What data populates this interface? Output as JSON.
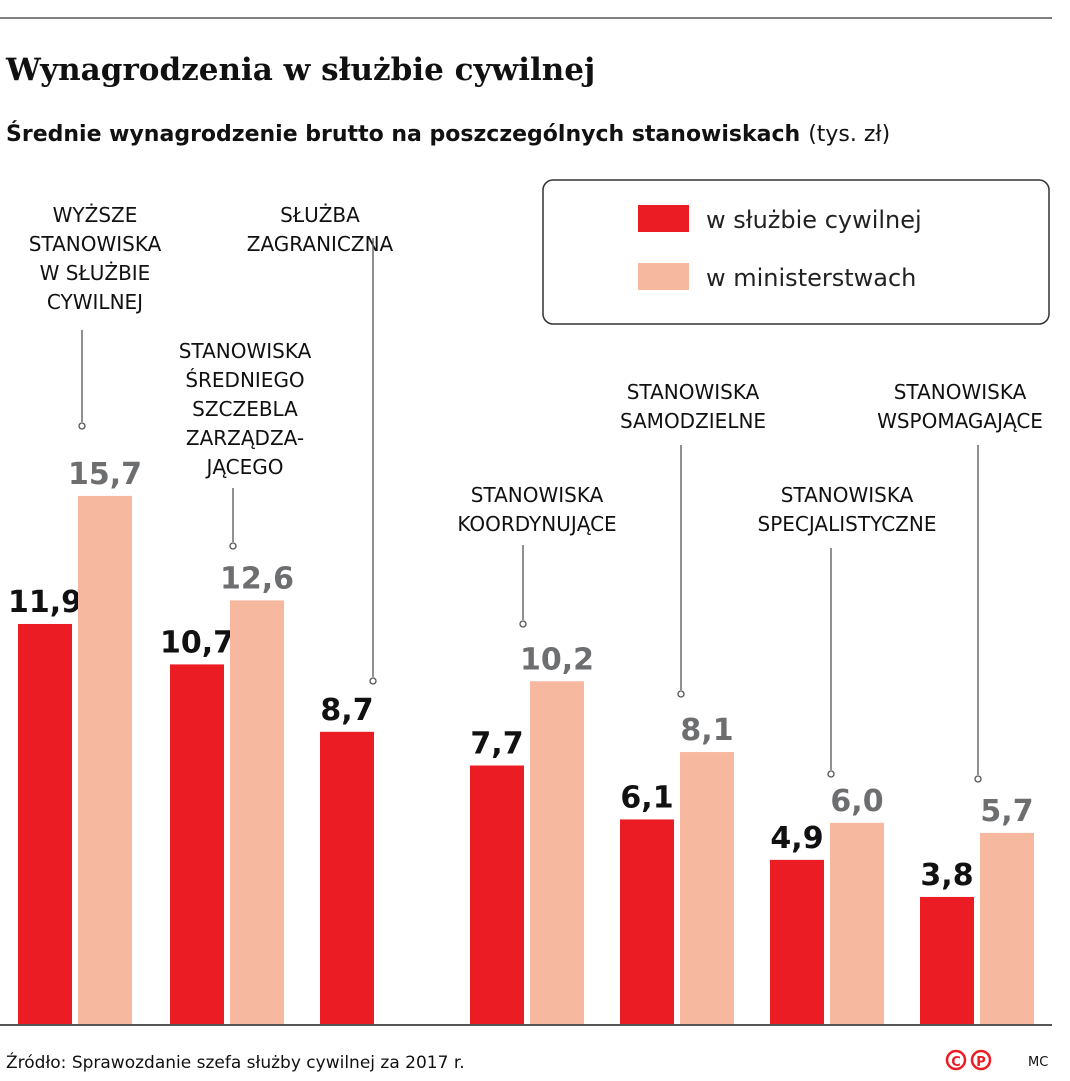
{
  "header": {
    "title": "Wynagrodzenia w służbie cywilnej",
    "subtitle": "Średnie wynagrodzenie brutto na poszczególnych stanowiskach",
    "unit": "(tys. zł)"
  },
  "footer": {
    "source": "Źródło: Sprawozdanie szefa służby cywilnej za 2017 r.",
    "copyright_logo": "©℗",
    "author": "MC"
  },
  "colors": {
    "red": "#ec1c24",
    "pink": "#f7b8a0",
    "red_label": "#111111",
    "pink_label": "#6d6e70"
  },
  "chart_data": {
    "type": "bar",
    "title": "Średnie wynagrodzenie brutto na poszczególnych stanowiskach",
    "unit": "tys. zł",
    "categories": [
      [
        "WYŻSZE",
        "STANOWISKA",
        "W SŁUŻBIE",
        "CYWILNEJ"
      ],
      [
        "STANOWISKA",
        "ŚREDNIEGO",
        "SZCZEBLA",
        "ZARZĄDZA-",
        "JĄCEGO"
      ],
      [
        "SŁUŻBA",
        "ZAGRANICZNA"
      ],
      [
        "STANOWISKA",
        "KOORDYNUJĄCE"
      ],
      [
        "STANOWISKA",
        "SAMODZIELNE"
      ],
      [
        "STANOWISKA",
        "SPECJALISTYCZNE"
      ],
      [
        "STANOWISKA",
        "WSPOMAGAJĄCE"
      ]
    ],
    "series": [
      {
        "name": "w służbie cywilnej",
        "values": [
          11.9,
          10.7,
          8.7,
          7.7,
          6.1,
          4.9,
          3.8
        ],
        "labels": [
          "11,9",
          "10,7",
          "8,7",
          "7,7",
          "6,1",
          "4,9",
          "3,8"
        ]
      },
      {
        "name": "w ministerstwach",
        "values": [
          15.7,
          12.6,
          null,
          10.2,
          8.1,
          6.0,
          5.7
        ],
        "labels": [
          "15,7",
          "12,6",
          "",
          "10,2",
          "8,1",
          "6,0",
          "5,7"
        ]
      }
    ],
    "ylim": [
      0,
      16
    ],
    "grid": false,
    "legend": "top-right"
  }
}
